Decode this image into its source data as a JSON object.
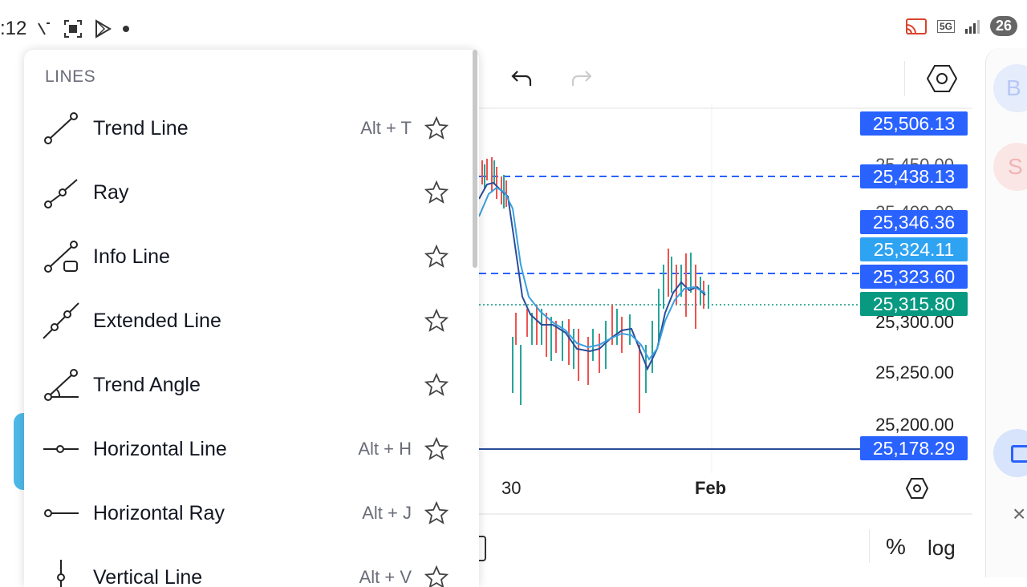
{
  "status_bar": {
    "time": ":12",
    "battery": "26",
    "network": "5G"
  },
  "drawer": {
    "section_title": "LINES",
    "tools": [
      {
        "label": "Trend Line",
        "shortcut": "Alt + T",
        "icon": "trend-line-icon"
      },
      {
        "label": "Ray",
        "shortcut": "",
        "icon": "ray-icon"
      },
      {
        "label": "Info Line",
        "shortcut": "",
        "icon": "info-line-icon"
      },
      {
        "label": "Extended Line",
        "shortcut": "",
        "icon": "extended-line-icon"
      },
      {
        "label": "Trend Angle",
        "shortcut": "",
        "icon": "trend-angle-icon"
      },
      {
        "label": "Horizontal Line",
        "shortcut": "Alt + H",
        "icon": "horizontal-line-icon"
      },
      {
        "label": "Horizontal Ray",
        "shortcut": "Alt + J",
        "icon": "horizontal-ray-icon"
      },
      {
        "label": "Vertical Line",
        "shortcut": "Alt + V",
        "icon": "vertical-line-icon"
      }
    ]
  },
  "chart": {
    "price_labels": {
      "p1": "25,506.13",
      "p2": "25,438.13",
      "p3": "25,346.36",
      "p4": "25,324.11",
      "p5": "25,323.60",
      "p6": "25,315.80",
      "p7": "25,178.29"
    },
    "axis_prices": {
      "a1": "25,450.00",
      "a2": "25,400.00",
      "a3": "25,300.00",
      "a4": "25,250.00",
      "a5": "25,200.00"
    },
    "x_labels": {
      "d1": "30",
      "d2": "Feb"
    },
    "bottom": {
      "percent": "%",
      "log": "log"
    },
    "colors": {
      "blue_label": "#2962ff",
      "light_blue_label": "#2ea3f2",
      "green_label": "#089981",
      "up_candle": "#26a69a",
      "down_candle": "#ef5350"
    }
  },
  "right_panel": {
    "buy": "B",
    "sell": "S",
    "close": "×"
  }
}
